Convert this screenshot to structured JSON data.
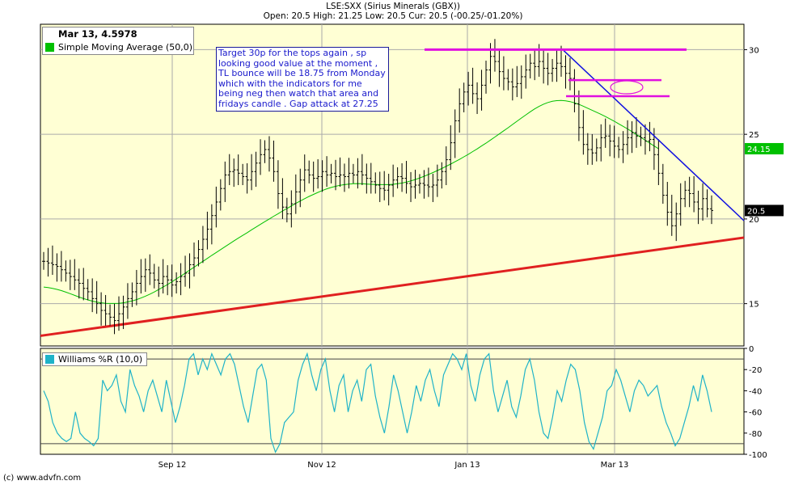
{
  "header": {
    "title": "LSE:SXX (Sirius Minerals (GBX))",
    "ohlc": "Open: 20.5 High: 21.25 Low: 20.5 Cur: 20.5 (-00.25/-01.20%)"
  },
  "legend_top": {
    "date": "Mar 13, 4.5978",
    "sma_label": "Simple Moving Average (50,0)",
    "sma_color": "#00c000"
  },
  "legend_bottom": {
    "label": "Williams %R (10,0)",
    "color": "#1fb3c8"
  },
  "annotation": "Target 30p for the tops again , sp looking good value at the moment ,\nTL bounce will be 18.75 from Monday\nwhich with the indicators for me being neg then watch that area and fridays candle . Gap attack at 27.25",
  "footer": "(c) www.advfn.com",
  "chart_data": [
    {
      "type": "candlestick",
      "title": "LSE:SXX (Sirius Minerals (GBX))",
      "x_ticks": [
        "Sep 12",
        "Nov 12",
        "Jan 13",
        "Mar 13"
      ],
      "y_ticks": [
        15,
        20,
        25,
        30
      ],
      "ylim": [
        12.5,
        31.5
      ],
      "price_label": "20.5",
      "sma_label": "24.15",
      "close": [
        17.5,
        17.4,
        17.3,
        17.2,
        17.0,
        16.8,
        16.6,
        16.4,
        16.2,
        15.9,
        15.7,
        15.3,
        15.0,
        14.6,
        14.4,
        14.2,
        14.0,
        14.4,
        14.8,
        15.3,
        15.7,
        16.2,
        16.6,
        17.0,
        16.8,
        16.4,
        16.2,
        16.6,
        16.4,
        16.1,
        16.3,
        16.6,
        16.8,
        17.3,
        17.7,
        18.2,
        18.8,
        19.4,
        20.2,
        21.0,
        21.8,
        22.6,
        22.8,
        22.9,
        22.7,
        22.5,
        22.3,
        22.8,
        23.3,
        23.8,
        24.1,
        23.6,
        22.8,
        21.5,
        20.7,
        20.3,
        20.9,
        21.6,
        22.3,
        22.9,
        22.6,
        22.4,
        22.5,
        22.8,
        22.6,
        22.7,
        22.5,
        22.6,
        22.5,
        22.7,
        22.6,
        22.8,
        22.6,
        22.4,
        22.2,
        22.0,
        21.8,
        21.7,
        22.0,
        22.3,
        22.5,
        22.4,
        22.1,
        21.9,
        22.0,
        22.1,
        22.0,
        21.9,
        22.0,
        22.3,
        22.8,
        23.5,
        24.5,
        25.8,
        26.8,
        27.5,
        27.9,
        27.4,
        27.1,
        27.9,
        28.8,
        29.6,
        29.3,
        28.7,
        28.3,
        28.1,
        27.8,
        28.0,
        28.4,
        28.8,
        29.2,
        29.0,
        29.3,
        28.9,
        28.6,
        28.9,
        29.2,
        29.0,
        28.6,
        28.3,
        26.8,
        25.4,
        24.4,
        24.1,
        23.9,
        24.2,
        24.8,
        24.9,
        24.6,
        24.3,
        24.1,
        24.4,
        24.8,
        25.1,
        24.9,
        24.8,
        24.6,
        24.7,
        23.8,
        22.7,
        21.4,
        20.4,
        19.6,
        20.3,
        21.2,
        21.7,
        21.5,
        21.0,
        20.6,
        21.2,
        20.6,
        20.5
      ],
      "sma": [
        15.98,
        15.95,
        15.9,
        15.84,
        15.77,
        15.68,
        15.59,
        15.49,
        15.39,
        15.3,
        15.22,
        15.15,
        15.09,
        15.05,
        15.02,
        15.01,
        15.01,
        15.02,
        15.05,
        15.1,
        15.16,
        15.24,
        15.33,
        15.44,
        15.56,
        15.69,
        15.83,
        15.98,
        16.13,
        16.29,
        16.46,
        16.63,
        16.8,
        16.98,
        17.15,
        17.33,
        17.5,
        17.67,
        17.85,
        18.02,
        18.19,
        18.36,
        18.53,
        18.7,
        18.87,
        19.03,
        19.19,
        19.36,
        19.52,
        19.68,
        19.84,
        20.0,
        20.16,
        20.31,
        20.47,
        20.62,
        20.77,
        20.92,
        21.06,
        21.2,
        21.33,
        21.45,
        21.57,
        21.68,
        21.78,
        21.86,
        21.93,
        21.99,
        22.03,
        22.06,
        22.08,
        22.09,
        22.08,
        22.06,
        22.05,
        22.04,
        22.03,
        22.03,
        22.03,
        22.05,
        22.08,
        22.12,
        22.18,
        22.25,
        22.33,
        22.42,
        22.52,
        22.63,
        22.74,
        22.86,
        22.98,
        23.11,
        23.24,
        23.38,
        23.52,
        23.67,
        23.82,
        23.98,
        24.14,
        24.31,
        24.48,
        24.66,
        24.84,
        25.02,
        25.21,
        25.39,
        25.58,
        25.77,
        25.96,
        26.15,
        26.33,
        26.5,
        26.65,
        26.78,
        26.88,
        26.95,
        26.99,
        27.0,
        26.98,
        26.93,
        26.86,
        26.77,
        26.66,
        26.54,
        26.42,
        26.3,
        26.18,
        26.05,
        25.91,
        25.77,
        25.62,
        25.47,
        25.32,
        25.16,
        24.99,
        24.82,
        24.65,
        24.48,
        24.31,
        24.15
      ],
      "trendlines": {
        "support": [
          [
            13.1,
            18.9
          ]
        ],
        "resistance": [
          29.95,
          19.9
        ],
        "target": 30.0,
        "gap_lines": [
          28.2,
          27.25
        ]
      }
    },
    {
      "type": "line",
      "title": "Williams %R (10,0)",
      "y_ticks": [
        0,
        -20,
        -40,
        -60,
        -80,
        -100
      ],
      "ylim": [
        -100,
        0
      ],
      "values": [
        -40,
        -50,
        -70,
        -80,
        -85,
        -88,
        -85,
        -60,
        -80,
        -85,
        -88,
        -92,
        -85,
        -30,
        -40,
        -35,
        -25,
        -50,
        -60,
        -20,
        -35,
        -45,
        -60,
        -40,
        -30,
        -45,
        -60,
        -30,
        -50,
        -70,
        -55,
        -35,
        -10,
        -5,
        -25,
        -10,
        -20,
        -5,
        -15,
        -25,
        -10,
        -5,
        -15,
        -35,
        -55,
        -70,
        -45,
        -20,
        -15,
        -30,
        -85,
        -98,
        -90,
        -70,
        -65,
        -60,
        -30,
        -15,
        -5,
        -25,
        -40,
        -20,
        -10,
        -40,
        -60,
        -35,
        -25,
        -60,
        -40,
        -30,
        -50,
        -20,
        -15,
        -45,
        -65,
        -80,
        -55,
        -25,
        -40,
        -60,
        -80,
        -60,
        -35,
        -50,
        -30,
        -20,
        -40,
        -55,
        -25,
        -15,
        -5,
        -10,
        -20,
        -5,
        -35,
        -50,
        -25,
        -10,
        -5,
        -40,
        -60,
        -45,
        -30,
        -55,
        -65,
        -45,
        -20,
        -10,
        -30,
        -60,
        -80,
        -85,
        -65,
        -40,
        -50,
        -30,
        -15,
        -20,
        -40,
        -70,
        -88,
        -95,
        -80,
        -65,
        -40,
        -35,
        -20,
        -30,
        -45,
        -60,
        -40,
        -30,
        -35,
        -45,
        -40,
        -35,
        -55,
        -70,
        -80,
        -92,
        -85,
        -70,
        -55,
        -35,
        -50,
        -25,
        -40,
        -60
      ]
    }
  ]
}
